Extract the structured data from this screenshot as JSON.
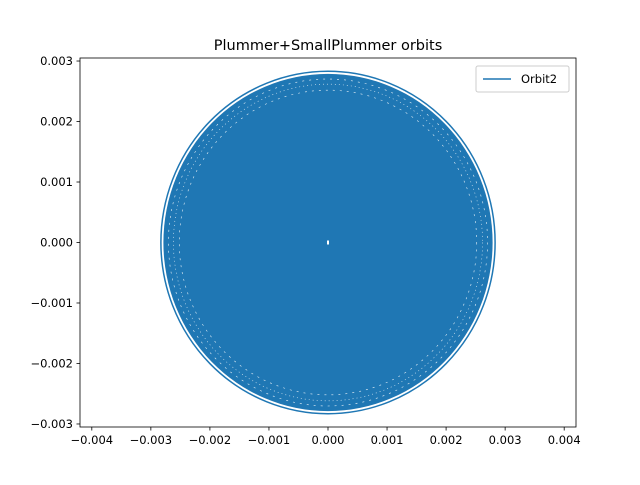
{
  "chart_data": {
    "type": "line",
    "title": "Plummer+SmallPlummer orbits",
    "xlabel": "",
    "ylabel": "",
    "xlim": [
      -0.0042,
      0.0042
    ],
    "ylim": [
      -0.00305,
      0.00305
    ],
    "x_ticks": [
      -0.004,
      -0.003,
      -0.002,
      -0.001,
      0.0,
      0.001,
      0.002,
      0.003,
      0.004
    ],
    "x_tick_labels": [
      "−0.004",
      "−0.003",
      "−0.002",
      "−0.001",
      "0.000",
      "0.001",
      "0.002",
      "0.003",
      "0.004"
    ],
    "y_ticks": [
      -0.003,
      -0.002,
      -0.001,
      0.0,
      0.001,
      0.002,
      0.003
    ],
    "y_tick_labels": [
      "−0.003",
      "−0.002",
      "−0.001",
      "0.000",
      "0.001",
      "0.002",
      "0.003"
    ],
    "grid": false,
    "legend_position": "top-right",
    "series": [
      {
        "name": "Orbit2",
        "color": "#1f77b4",
        "shape": "dense rosette filling a disk",
        "outer_radius": 0.00283,
        "inner_radius": 1e-05,
        "center": [
          0.0,
          0.0
        ]
      }
    ]
  }
}
